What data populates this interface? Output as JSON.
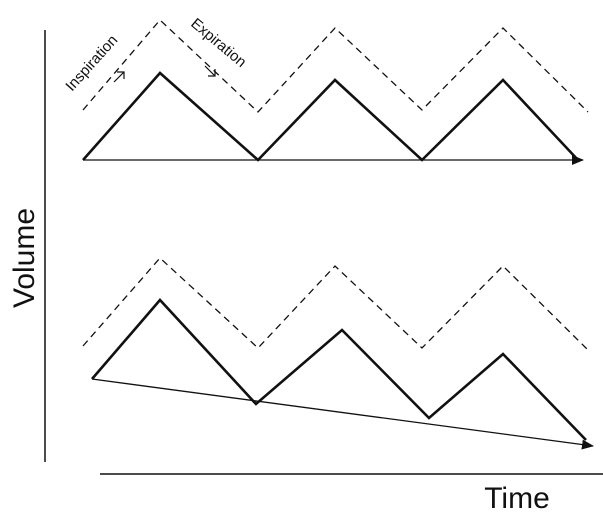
{
  "diagram": {
    "y_axis_label": "Volume",
    "x_axis_label": "Time",
    "annotations": {
      "inspiration": "Inspiration",
      "expiration": "Expiration"
    },
    "line_color": "#111111",
    "panels": [
      {
        "id": "top",
        "baseline": "flat",
        "tidal_wave": "solid",
        "envelope": "dashed"
      },
      {
        "id": "bottom",
        "baseline": "declining",
        "tidal_wave": "solid",
        "envelope": "dashed"
      }
    ]
  }
}
